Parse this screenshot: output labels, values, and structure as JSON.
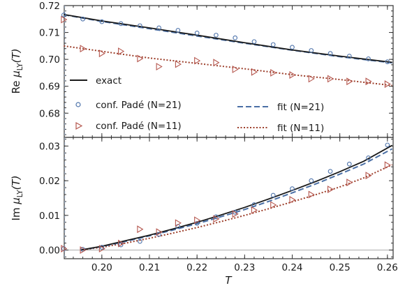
{
  "chart_data": [
    {
      "type": "line",
      "panel": "top",
      "ylabel": "Re μLY(T)",
      "ylabel_prefix": "Re ",
      "ylabel_symbol": "μ",
      "ylabel_sub": "LY",
      "ylabel_arg": "(T)",
      "xlim": [
        0.1921,
        0.2612
      ],
      "ylim": [
        0.671,
        0.72
      ],
      "yticks": [
        "0.68",
        "0.69",
        "0.70",
        "0.71",
        "0.72"
      ],
      "grid": false,
      "legend_position": "lower-left",
      "series": [
        {
          "name": "exact",
          "style": "solid",
          "color": "#1a1a1a",
          "x": [
            0.192,
            0.2,
            0.21,
            0.22,
            0.23,
            0.24,
            0.25,
            0.261
          ],
          "y": [
            0.7167,
            0.7143,
            0.7117,
            0.709,
            0.7062,
            0.7035,
            0.7012,
            0.6989
          ]
        },
        {
          "name": "conf. Padé (N=21)",
          "style": "markers-circle",
          "color": "#4f74ab",
          "x": [
            0.192,
            0.196,
            0.2,
            0.204,
            0.208,
            0.212,
            0.216,
            0.22,
            0.224,
            0.228,
            0.232,
            0.236,
            0.24,
            0.244,
            0.248,
            0.252,
            0.256,
            0.26
          ],
          "y": [
            0.7165,
            0.715,
            0.714,
            0.7133,
            0.7125,
            0.7117,
            0.7108,
            0.7098,
            0.709,
            0.708,
            0.7066,
            0.7055,
            0.7045,
            0.7033,
            0.7022,
            0.7012,
            0.7002,
            0.6991
          ]
        },
        {
          "name": "fit (N=21)",
          "style": "dashed",
          "color": "#4a6fa5",
          "x": [
            0.192,
            0.2,
            0.21,
            0.22,
            0.23,
            0.24,
            0.25,
            0.261
          ],
          "y": [
            0.7166,
            0.7141,
            0.7114,
            0.7087,
            0.706,
            0.7034,
            0.701,
            0.6987
          ]
        },
        {
          "name": "conf. Padé (N=11)",
          "style": "markers-triangle",
          "color": "#b5574e",
          "x": [
            0.192,
            0.196,
            0.2,
            0.204,
            0.208,
            0.212,
            0.216,
            0.22,
            0.224,
            0.228,
            0.232,
            0.236,
            0.24,
            0.244,
            0.248,
            0.252,
            0.256,
            0.26
          ],
          "y": [
            0.7148,
            0.704,
            0.7022,
            0.703,
            0.7003,
            0.6973,
            0.6982,
            0.6995,
            0.6988,
            0.6963,
            0.6953,
            0.695,
            0.6942,
            0.6928,
            0.6928,
            0.6918,
            0.6918,
            0.6908
          ]
        },
        {
          "name": "fit (N=11)",
          "style": "dotted",
          "color": "#9c3e2a",
          "x": [
            0.192,
            0.2,
            0.21,
            0.22,
            0.23,
            0.24,
            0.25,
            0.261
          ],
          "y": [
            0.705,
            0.703,
            0.7005,
            0.6985,
            0.6965,
            0.6943,
            0.6925,
            0.6903
          ]
        }
      ]
    },
    {
      "type": "line",
      "panel": "bottom",
      "xlabel": "T",
      "ylabel": "Im μLY(T)",
      "ylabel_prefix": "Im ",
      "ylabel_symbol": "μ",
      "ylabel_sub": "LY",
      "ylabel_arg": "(T)",
      "xlim": [
        0.1921,
        0.2612
      ],
      "ylim": [
        -0.0025,
        0.0325
      ],
      "xticks": [
        "0.20",
        "0.21",
        "0.22",
        "0.23",
        "0.24",
        "0.25",
        "0.26"
      ],
      "yticks": [
        "0.00",
        "0.01",
        "0.02",
        "0.03"
      ],
      "grid": false,
      "zero_line": true,
      "series": [
        {
          "name": "exact",
          "style": "solid",
          "color": "#1a1a1a",
          "x": [
            0.1955,
            0.2,
            0.205,
            0.21,
            0.215,
            0.22,
            0.225,
            0.23,
            0.235,
            0.24,
            0.245,
            0.25,
            0.255,
            0.261
          ],
          "y": [
            0.0,
            0.0011,
            0.0027,
            0.0043,
            0.0061,
            0.008,
            0.0101,
            0.0123,
            0.0147,
            0.0172,
            0.0198,
            0.0226,
            0.0256,
            0.0302
          ]
        },
        {
          "name": "conf. Padé (N=21)",
          "style": "markers-circle",
          "color": "#4f74ab",
          "x": [
            0.192,
            0.196,
            0.2,
            0.204,
            0.208,
            0.212,
            0.216,
            0.22,
            0.224,
            0.228,
            0.232,
            0.236,
            0.24,
            0.244,
            0.248,
            0.252,
            0.256,
            0.26
          ],
          "y": [
            0.0004,
            0.0002,
            0.0008,
            0.0015,
            0.0025,
            0.0045,
            0.0068,
            0.0077,
            0.0096,
            0.0109,
            0.0131,
            0.0158,
            0.0177,
            0.02,
            0.0227,
            0.0248,
            0.0266,
            0.0303
          ]
        },
        {
          "name": "fit (N=21)",
          "style": "dashed",
          "color": "#4a6fa5",
          "x": [
            0.1955,
            0.2,
            0.205,
            0.21,
            0.215,
            0.22,
            0.225,
            0.23,
            0.235,
            0.24,
            0.245,
            0.25,
            0.255,
            0.261
          ],
          "y": [
            0.0,
            0.001,
            0.0025,
            0.0041,
            0.0058,
            0.0076,
            0.0096,
            0.0117,
            0.014,
            0.0165,
            0.0191,
            0.0219,
            0.0248,
            0.0292
          ]
        },
        {
          "name": "conf. Padé (N=11)",
          "style": "markers-triangle",
          "color": "#b5574e",
          "x": [
            0.192,
            0.196,
            0.2,
            0.204,
            0.208,
            0.212,
            0.216,
            0.22,
            0.224,
            0.228,
            0.232,
            0.236,
            0.24,
            0.244,
            0.248,
            0.252,
            0.256,
            0.26
          ],
          "y": [
            0.0004,
            0.0,
            0.0004,
            0.0019,
            0.006,
            0.0052,
            0.0078,
            0.0086,
            0.009,
            0.0104,
            0.0115,
            0.013,
            0.0145,
            0.016,
            0.0175,
            0.0195,
            0.0215,
            0.0245
          ]
        },
        {
          "name": "fit (N=11)",
          "style": "dotted",
          "color": "#9c3e2a",
          "x": [
            0.1955,
            0.2,
            0.205,
            0.21,
            0.215,
            0.22,
            0.225,
            0.23,
            0.235,
            0.24,
            0.245,
            0.25,
            0.255,
            0.261
          ],
          "y": [
            0.0,
            0.0008,
            0.002,
            0.0034,
            0.0049,
            0.0065,
            0.0082,
            0.01,
            0.0119,
            0.0139,
            0.016,
            0.0182,
            0.0208,
            0.0246
          ]
        }
      ]
    }
  ],
  "legend": [
    {
      "label": "exact",
      "marker": "line-solid",
      "color": "#1a1a1a"
    },
    {
      "label": "conf. Padé (N=21)",
      "marker": "circle",
      "color": "#4f74ab"
    },
    {
      "label": "conf. Padé (N=11)",
      "marker": "triangle",
      "color": "#b5574e"
    },
    {
      "label": "fit (N=21)",
      "marker": "line-dashed",
      "color": "#4a6fa5"
    },
    {
      "label": "fit (N=11)",
      "marker": "line-dotted",
      "color": "#9c3e2a"
    }
  ],
  "reference_line": {
    "x": 0.1922,
    "color": "#9eb0c8",
    "style": "dashed"
  }
}
